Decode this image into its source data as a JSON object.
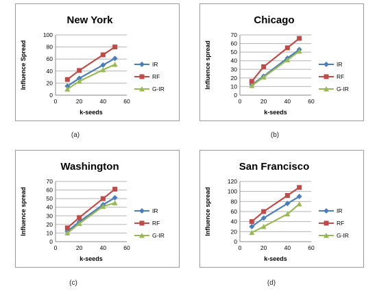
{
  "chart_data": [
    {
      "type": "line",
      "title": "New York",
      "xlabel": "k-seeds",
      "ylabel": "Influence Spread",
      "xlim": [
        0,
        60
      ],
      "ylim": [
        0,
        100
      ],
      "xticks": [
        0,
        20,
        40,
        60
      ],
      "yticks": [
        0,
        20,
        40,
        60,
        80,
        100
      ],
      "legend": "right",
      "caption": "(a)",
      "x": [
        10,
        20,
        40,
        50
      ],
      "series": [
        {
          "name": "IR",
          "values": [
            15,
            28,
            50,
            61
          ]
        },
        {
          "name": "RF",
          "values": [
            26,
            41,
            67,
            80
          ]
        },
        {
          "name": "G-IR",
          "values": [
            10,
            23,
            42,
            51
          ]
        }
      ]
    },
    {
      "type": "line",
      "title": "Chicago",
      "xlabel": "k-seeds",
      "ylabel": "Influence spread",
      "xlim": [
        0,
        60
      ],
      "ylim": [
        0,
        70
      ],
      "xticks": [
        0,
        20,
        40,
        60
      ],
      "yticks": [
        0,
        10,
        20,
        30,
        40,
        50,
        60,
        70
      ],
      "legend": "right",
      "caption": "(b)",
      "x": [
        10,
        20,
        40,
        50
      ],
      "series": [
        {
          "name": "IR",
          "values": [
            12,
            22,
            43,
            53
          ]
        },
        {
          "name": "RF",
          "values": [
            16,
            33,
            55,
            66
          ]
        },
        {
          "name": "G-IR",
          "values": [
            11,
            21,
            41,
            51
          ]
        }
      ]
    },
    {
      "type": "line",
      "title": "Washington",
      "xlabel": "k-seeds",
      "ylabel": "Influence spread",
      "xlim": [
        0,
        60
      ],
      "ylim": [
        0,
        70
      ],
      "xticks": [
        0,
        20,
        40,
        60
      ],
      "yticks": [
        0,
        10,
        20,
        30,
        40,
        50,
        60,
        70
      ],
      "legend": "right",
      "caption": "(c)",
      "x": [
        10,
        20,
        40,
        50
      ],
      "series": [
        {
          "name": "IR",
          "values": [
            12,
            23,
            43,
            51
          ]
        },
        {
          "name": "RF",
          "values": [
            16,
            28,
            50,
            61
          ]
        },
        {
          "name": "G-IR",
          "values": [
            10,
            21,
            41,
            45
          ]
        }
      ]
    },
    {
      "type": "line",
      "title": "San Francisco",
      "xlabel": "k-seeds",
      "ylabel": "Influence spread",
      "xlim": [
        0,
        60
      ],
      "ylim": [
        0,
        120
      ],
      "xticks": [
        0,
        20,
        40,
        60
      ],
      "yticks": [
        0,
        20,
        40,
        60,
        80,
        100,
        120
      ],
      "legend": "right",
      "caption": "(d)",
      "x": [
        10,
        20,
        40,
        50
      ],
      "series": [
        {
          "name": "IR",
          "values": [
            30,
            47,
            76,
            90
          ]
        },
        {
          "name": "RF",
          "values": [
            40,
            60,
            92,
            108
          ]
        },
        {
          "name": "G-IR",
          "values": [
            18,
            30,
            55,
            75
          ]
        }
      ]
    }
  ],
  "colors": {
    "IR": "#4a7ebb",
    "RF": "#be4b48",
    "G-IR": "#98b954",
    "grid": "#b3b3b3"
  }
}
